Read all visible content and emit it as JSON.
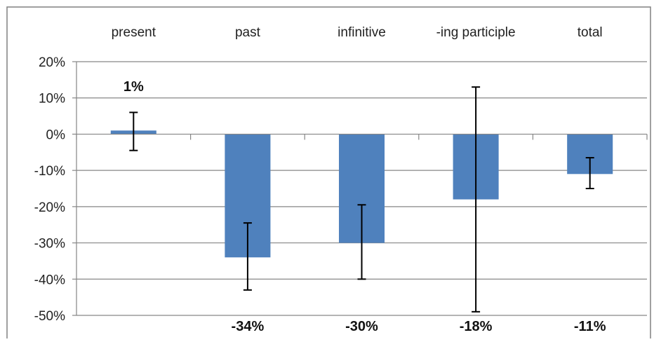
{
  "chart_data": {
    "type": "bar",
    "categories": [
      "present",
      "past",
      "infinitive",
      "-ing participle",
      "total"
    ],
    "values": [
      1,
      -34,
      -30,
      -18,
      -11
    ],
    "error_bars": [
      {
        "low": -4.5,
        "high": 6
      },
      {
        "low": -43,
        "high": -24.5
      },
      {
        "low": -40,
        "high": -19.5
      },
      {
        "low": -49,
        "high": 13
      },
      {
        "low": -15,
        "high": -6.5
      }
    ],
    "data_labels": [
      "1%",
      "-34%",
      "-30%",
      "-18%",
      "-11%"
    ],
    "y_ticks": [
      "20%",
      "10%",
      "0%",
      "-10%",
      "-20%",
      "-30%",
      "-40%",
      "-50%"
    ],
    "ylim": [
      -50,
      20
    ],
    "y_unit": "%",
    "grid": true,
    "category_labels_position": "top",
    "colors": {
      "bar": "#4F81BD",
      "grid": "#868686",
      "error_bar": "#000000",
      "border": "#808080"
    }
  }
}
